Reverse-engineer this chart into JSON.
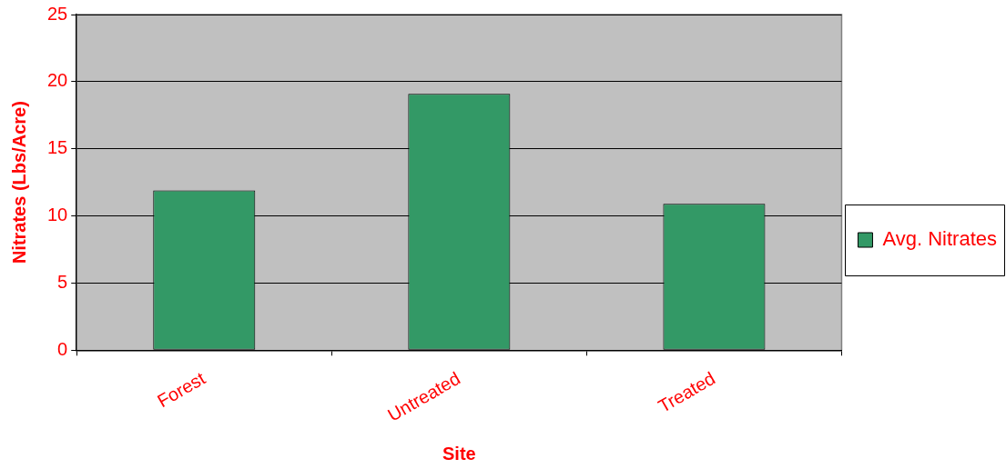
{
  "chart_data": {
    "type": "bar",
    "categories": [
      "Forest",
      "Untreated",
      "Treated"
    ],
    "series": [
      {
        "name": "Avg. Nitrates",
        "color": "#339966",
        "values": [
          11.9,
          19.1,
          10.9
        ]
      }
    ],
    "xlabel": "Site",
    "ylabel": "Nitrates (Lbs/Acre)",
    "ylim": [
      0,
      25
    ],
    "yticks": [
      0,
      5,
      10,
      15,
      20,
      25
    ],
    "grid": "y",
    "legend": "right"
  }
}
